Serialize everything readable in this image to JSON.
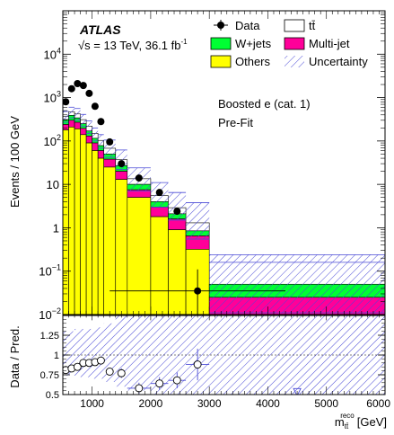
{
  "chart_data": [
    {
      "type": "bar",
      "panel": "main",
      "ylabel": "Events / 100 GeV",
      "yscale": "log",
      "ylim": [
        0.01,
        100000
      ],
      "xlim": [
        500,
        6000
      ],
      "texts": {
        "experiment": "ATLAS",
        "lumi_prefix": "√s = 13 TeV, 36.1 fb",
        "lumi_exp": "-1",
        "channel": "Boosted e (cat. 1)",
        "stage": "Pre-Fit"
      },
      "yticks": [
        {
          "v": 0.01,
          "base": "10",
          "exp": "−2"
        },
        {
          "v": 0.1,
          "base": "10",
          "exp": "−1"
        },
        {
          "v": 1,
          "base": "1",
          "exp": ""
        },
        {
          "v": 10,
          "base": "10",
          "exp": ""
        },
        {
          "v": 100,
          "base": "10",
          "exp": "2"
        },
        {
          "v": 1000,
          "base": "10",
          "exp": "3"
        },
        {
          "v": 10000,
          "base": "10",
          "exp": "4"
        }
      ],
      "legend": [
        {
          "key": "data",
          "label": "Data"
        },
        {
          "key": "ttbar",
          "label": "tt̄"
        },
        {
          "key": "wjets",
          "label": "W+jets"
        },
        {
          "key": "multijet",
          "label": "Multi-jet"
        },
        {
          "key": "others",
          "label": "Others"
        },
        {
          "key": "unc",
          "label": "Uncertainty"
        }
      ],
      "colors": {
        "others": "#ffff00",
        "multijet": "#ff0099",
        "wjets": "#00ff33",
        "ttbar": "#ffffff",
        "unc": "#4a4ad6"
      },
      "bins": [
        {
          "lo": 500,
          "hi": 600,
          "others": 180,
          "multijet": 240,
          "wjets": 310,
          "ttbar": 370,
          "unc_lo": 270,
          "unc_hi": 480
        },
        {
          "lo": 600,
          "hi": 700,
          "others": 210,
          "multijet": 300,
          "wjets": 390,
          "ttbar": 470,
          "unc_lo": 340,
          "unc_hi": 600
        },
        {
          "lo": 700,
          "hi": 800,
          "others": 190,
          "multijet": 270,
          "wjets": 340,
          "ttbar": 420,
          "unc_lo": 300,
          "unc_hi": 560
        },
        {
          "lo": 800,
          "hi": 900,
          "others": 140,
          "multijet": 195,
          "wjets": 250,
          "ttbar": 310,
          "unc_lo": 220,
          "unc_hi": 410
        },
        {
          "lo": 900,
          "hi": 1000,
          "others": 90,
          "multijet": 130,
          "wjets": 170,
          "ttbar": 220,
          "unc_lo": 150,
          "unc_hi": 290
        },
        {
          "lo": 1000,
          "hi": 1100,
          "others": 60,
          "multijet": 90,
          "wjets": 115,
          "ttbar": 150,
          "unc_lo": 100,
          "unc_hi": 200
        },
        {
          "lo": 1100,
          "hi": 1200,
          "others": 40,
          "multijet": 60,
          "wjets": 78,
          "ttbar": 103,
          "unc_lo": 68,
          "unc_hi": 140
        },
        {
          "lo": 1200,
          "hi": 1400,
          "others": 25,
          "multijet": 38,
          "wjets": 50,
          "ttbar": 68,
          "unc_lo": 42,
          "unc_hi": 105
        },
        {
          "lo": 1400,
          "hi": 1600,
          "others": 13,
          "multijet": 20,
          "wjets": 27,
          "ttbar": 37,
          "unc_lo": 22,
          "unc_hi": 62
        },
        {
          "lo": 1600,
          "hi": 2000,
          "others": 5,
          "multijet": 7.5,
          "wjets": 10,
          "ttbar": 13.5,
          "unc_lo": 7,
          "unc_hi": 24
        },
        {
          "lo": 2000,
          "hi": 2300,
          "others": 1.8,
          "multijet": 3.0,
          "wjets": 4.0,
          "ttbar": 5.5,
          "unc_lo": 3,
          "unc_hi": 11
        },
        {
          "lo": 2300,
          "hi": 2600,
          "others": 0.9,
          "multijet": 1.6,
          "wjets": 2.1,
          "ttbar": 2.9,
          "unc_lo": 1.5,
          "unc_hi": 6.5
        },
        {
          "lo": 2600,
          "hi": 3000,
          "others": 0.32,
          "multijet": 0.65,
          "wjets": 0.85,
          "ttbar": 1.3,
          "unc_lo": 0.55,
          "unc_hi": 3.8
        },
        {
          "lo": 3000,
          "hi": 6000,
          "others": 0.0101,
          "multijet": 0.025,
          "wjets": 0.05,
          "ttbar": 0.05,
          "unc_lo": 0.011,
          "unc_hi": 0.24
        }
      ],
      "unc_line": [
        {
          "lo": 3000,
          "hi": 6000,
          "v": 0.16
        }
      ],
      "data": [
        {
          "x": 550,
          "y": 800
        },
        {
          "x": 650,
          "y": 1600
        },
        {
          "x": 750,
          "y": 2100
        },
        {
          "x": 850,
          "y": 1900
        },
        {
          "x": 950,
          "y": 1250
        },
        {
          "x": 1050,
          "y": 630
        },
        {
          "x": 1150,
          "y": 280
        },
        {
          "x": 1300,
          "y": 95
        },
        {
          "x": 1500,
          "y": 30
        },
        {
          "x": 1800,
          "y": 14
        },
        {
          "x": 2150,
          "y": 6.5
        },
        {
          "x": 2450,
          "y": 2.4
        },
        {
          "x": 2800,
          "y": 0.035,
          "dx": 1500,
          "ylo": 0.01,
          "yhi": 0.11
        }
      ]
    },
    {
      "type": "scatter",
      "panel": "ratio",
      "ylabel": "Data / Pred.",
      "xlabel_prefix": "m",
      "xlabel_sub": "tt̄",
      "xlabel_sup": "reco",
      "xlabel_unit": "[GeV]",
      "xlim": [
        500,
        6000
      ],
      "ylim": [
        0.5,
        1.5
      ],
      "yticks": [
        {
          "v": 0.5,
          "label": "0.5"
        },
        {
          "v": 0.75,
          "label": "0.75"
        },
        {
          "v": 1,
          "label": "1"
        },
        {
          "v": 1.25,
          "label": "1.25"
        }
      ],
      "xticks": [
        {
          "v": 1000,
          "label": "1000"
        },
        {
          "v": 2000,
          "label": "2000"
        },
        {
          "v": 3000,
          "label": "3000"
        },
        {
          "v": 4000,
          "label": "4000"
        },
        {
          "v": 5000,
          "label": "5000"
        },
        {
          "v": 6000,
          "label": "6000"
        }
      ],
      "unc_band": [
        {
          "lo": 500,
          "hi": 600,
          "ylo": 0.74,
          "yhi": 1.3
        },
        {
          "lo": 600,
          "hi": 700,
          "ylo": 0.74,
          "yhi": 1.3
        },
        {
          "lo": 700,
          "hi": 800,
          "ylo": 0.74,
          "yhi": 1.33
        },
        {
          "lo": 800,
          "hi": 900,
          "ylo": 0.72,
          "yhi": 1.33
        },
        {
          "lo": 900,
          "hi": 1000,
          "ylo": 0.72,
          "yhi": 1.33
        },
        {
          "lo": 1000,
          "hi": 1100,
          "ylo": 0.7,
          "yhi": 1.33
        },
        {
          "lo": 1100,
          "hi": 1200,
          "ylo": 0.7,
          "yhi": 1.35
        },
        {
          "lo": 1200,
          "hi": 1400,
          "ylo": 0.66,
          "yhi": 1.4
        },
        {
          "lo": 1400,
          "hi": 1600,
          "ylo": 0.6,
          "yhi": 1.5
        },
        {
          "lo": 1600,
          "hi": 2000,
          "ylo": 0.55,
          "yhi": 1.5
        },
        {
          "lo": 2000,
          "hi": 2300,
          "ylo": 0.5,
          "yhi": 1.5
        },
        {
          "lo": 2300,
          "hi": 2600,
          "ylo": 0.5,
          "yhi": 1.5
        },
        {
          "lo": 2600,
          "hi": 3000,
          "ylo": 0.5,
          "yhi": 1.5
        },
        {
          "lo": 3000,
          "hi": 6000,
          "ylo": 0.5,
          "yhi": 1.5
        }
      ],
      "points": [
        {
          "x": 550,
          "y": 0.81
        },
        {
          "x": 650,
          "y": 0.83
        },
        {
          "x": 750,
          "y": 0.85
        },
        {
          "x": 850,
          "y": 0.9
        },
        {
          "x": 950,
          "y": 0.9
        },
        {
          "x": 1050,
          "y": 0.91
        },
        {
          "x": 1150,
          "y": 0.93
        },
        {
          "x": 1300,
          "y": 0.79,
          "dy": 0.04
        },
        {
          "x": 1500,
          "y": 0.77,
          "dy": 0.06
        },
        {
          "x": 1800,
          "y": 0.58,
          "dy": 0.07,
          "dx": 200
        },
        {
          "x": 2150,
          "y": 0.64,
          "dy": 0.08,
          "dx": 150
        },
        {
          "x": 2450,
          "y": 0.68,
          "dy": 0.1,
          "dx": 150
        },
        {
          "x": 2800,
          "y": 0.88,
          "dy": 0.2,
          "dx": 200
        }
      ],
      "offscale_marker": {
        "x": 4500,
        "y": 0.53
      }
    }
  ]
}
